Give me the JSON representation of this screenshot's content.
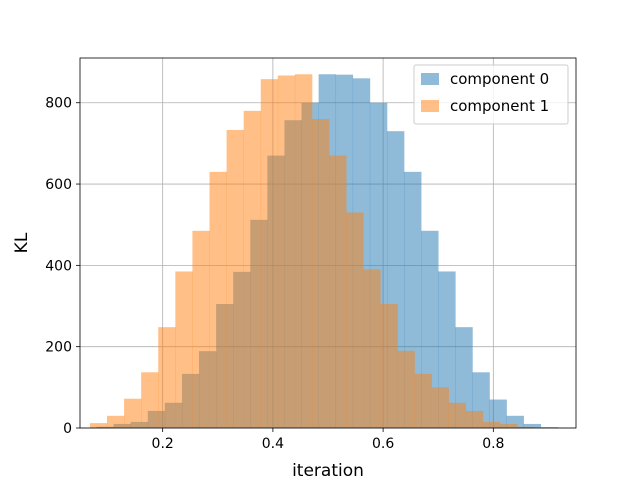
{
  "chart_data": {
    "type": "bar",
    "subtype": "overlapping-histogram",
    "title": "",
    "xlabel": "iteration",
    "ylabel": "KL",
    "xlim": [
      0.05,
      0.95
    ],
    "ylim": [
      0,
      910
    ],
    "xticks": [
      "0.2",
      "0.4",
      "0.6",
      "0.8"
    ],
    "yticks": [
      "0",
      "200",
      "400",
      "600",
      "800"
    ],
    "grid": true,
    "legend": "top-right",
    "bin_width": 0.031,
    "series": [
      {
        "name": "component 0",
        "color": "#1f77b4",
        "alpha": 0.5,
        "bins_left": [
          0.08,
          0.111,
          0.142,
          0.173,
          0.204,
          0.235,
          0.266,
          0.297,
          0.328,
          0.359,
          0.39,
          0.421,
          0.452,
          0.483,
          0.514,
          0.545,
          0.576,
          0.607,
          0.638,
          0.669,
          0.7,
          0.731,
          0.762,
          0.793,
          0.824,
          0.855,
          0.886
        ],
        "values": [
          3,
          10,
          15,
          42,
          62,
          133,
          189,
          305,
          384,
          512,
          670,
          757,
          800,
          870,
          869,
          860,
          800,
          730,
          630,
          485,
          385,
          248,
          137,
          70,
          30,
          10,
          2
        ]
      },
      {
        "name": "component 1",
        "color": "#ff7f0e",
        "alpha": 0.5,
        "bins_left": [
          0.068,
          0.099,
          0.13,
          0.161,
          0.192,
          0.223,
          0.254,
          0.285,
          0.316,
          0.347,
          0.378,
          0.409,
          0.44,
          0.471,
          0.502,
          0.533,
          0.564,
          0.595,
          0.626,
          0.657,
          0.688,
          0.719,
          0.75,
          0.781,
          0.812,
          0.843
        ],
        "values": [
          12,
          30,
          72,
          137,
          248,
          385,
          485,
          630,
          733,
          780,
          858,
          867,
          870,
          760,
          670,
          530,
          390,
          305,
          190,
          133,
          100,
          62,
          42,
          15,
          10,
          3
        ]
      }
    ]
  }
}
